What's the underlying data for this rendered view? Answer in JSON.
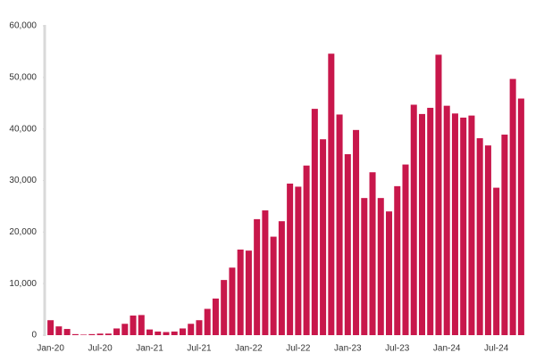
{
  "chart_data": {
    "type": "bar",
    "categories": [
      "Jan-20",
      null,
      null,
      null,
      null,
      null,
      "Jul-20",
      null,
      null,
      null,
      null,
      null,
      "Jan-21",
      null,
      null,
      null,
      null,
      null,
      "Jul-21",
      null,
      null,
      null,
      null,
      null,
      "Jan-22",
      null,
      null,
      null,
      null,
      null,
      "Jul-22",
      null,
      null,
      null,
      null,
      null,
      "Jan-23",
      null,
      null,
      null,
      null,
      null,
      "Jul-23",
      null,
      null,
      null,
      null,
      null,
      "Jan-24",
      null,
      null,
      null,
      null,
      null,
      "Jul-24",
      null,
      null,
      null
    ],
    "values": [
      2900,
      1700,
      1200,
      200,
      100,
      200,
      300,
      300,
      1300,
      2200,
      3800,
      3900,
      1100,
      700,
      600,
      700,
      1300,
      2200,
      2900,
      5100,
      7100,
      10700,
      13100,
      16600,
      16400,
      22500,
      24200,
      19100,
      22100,
      29400,
      28800,
      32900,
      43900,
      38000,
      54600,
      42800,
      35100,
      39800,
      26600,
      31600,
      26600,
      24000,
      28900,
      33100,
      44700,
      42900,
      44100,
      54400,
      44500,
      43000,
      42200,
      42600,
      38200,
      36800,
      28600,
      38900,
      49700,
      45900
    ],
    "color": "#c8174b",
    "ylim": [
      0,
      60000
    ],
    "yticks": [
      0,
      {
        "value": 10000,
        "label": "10,000"
      },
      {
        "value": 20000,
        "label": "20,000"
      },
      {
        "value": 30000,
        "label": "30,000"
      },
      {
        "value": 40000,
        "label": "40,000"
      },
      {
        "value": 50000,
        "label": "50,000"
      },
      {
        "value": 60000,
        "label": "60,000"
      }
    ],
    "grid": false
  }
}
